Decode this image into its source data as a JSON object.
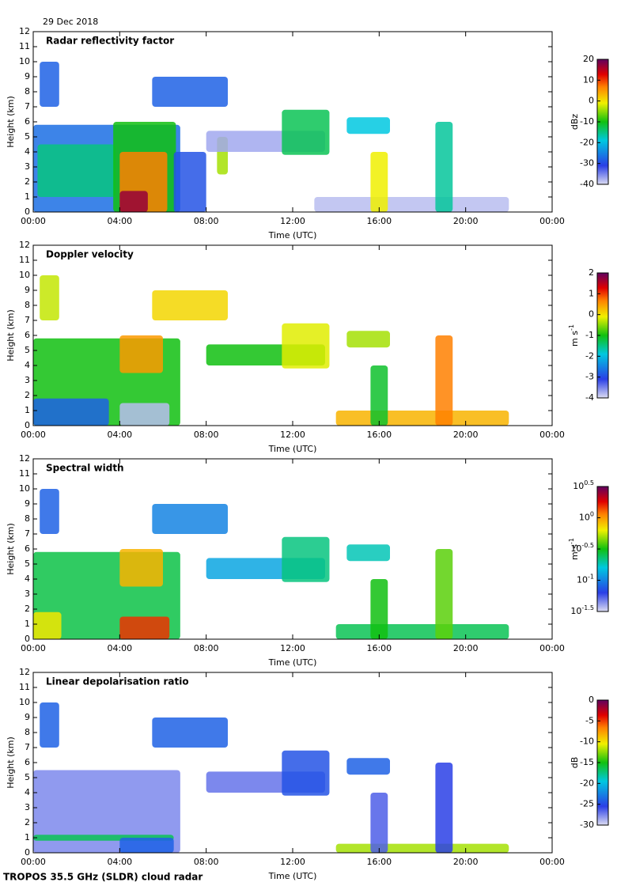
{
  "date": "29 Dec 2018",
  "footer": "TROPOS 35.5 GHz (SLDR) cloud radar",
  "chart_data": [
    {
      "type": "heatmap",
      "title": "Radar reflectivity factor",
      "xlabel": "Time (UTC)",
      "ylabel": "Height (km)",
      "xlim": [
        0,
        24
      ],
      "xticks": [
        {
          "value": 0,
          "label": "00:00"
        },
        {
          "value": 4,
          "label": "04:00"
        },
        {
          "value": 8,
          "label": "08:00"
        },
        {
          "value": 12,
          "label": "12:00"
        },
        {
          "value": 16,
          "label": "16:00"
        },
        {
          "value": 20,
          "label": "20:00"
        },
        {
          "value": 24,
          "label": "00:00"
        }
      ],
      "ylim": [
        0,
        12
      ],
      "yticks": [
        0,
        1,
        2,
        3,
        4,
        5,
        6,
        7,
        8,
        9,
        10,
        11,
        12
      ],
      "colorbar": {
        "label": "dBz",
        "lim": [
          -40,
          20
        ],
        "ticks": [
          -40,
          -30,
          -20,
          -10,
          0,
          10,
          20
        ]
      }
    },
    {
      "type": "heatmap",
      "title": "Doppler velocity",
      "xlabel": "Time (UTC)",
      "ylabel": "Height (km)",
      "xlim": [
        0,
        24
      ],
      "xticks": [
        {
          "value": 0,
          "label": "00:00"
        },
        {
          "value": 4,
          "label": "04:00"
        },
        {
          "value": 8,
          "label": "08:00"
        },
        {
          "value": 12,
          "label": "12:00"
        },
        {
          "value": 16,
          "label": "16:00"
        },
        {
          "value": 20,
          "label": "20:00"
        },
        {
          "value": 24,
          "label": "00:00"
        }
      ],
      "ylim": [
        0,
        12
      ],
      "yticks": [
        0,
        1,
        2,
        3,
        4,
        5,
        6,
        7,
        8,
        9,
        10,
        11,
        12
      ],
      "colorbar": {
        "label": "m s",
        "label_exponent": "-1",
        "lim": [
          -4,
          2
        ],
        "ticks": [
          -4,
          -3,
          -2,
          -1,
          0,
          1,
          2
        ]
      }
    },
    {
      "type": "heatmap",
      "title": "Spectral width",
      "xlabel": "Time (UTC)",
      "ylabel": "Height (km)",
      "xlim": [
        0,
        24
      ],
      "xticks": [
        {
          "value": 0,
          "label": "00:00"
        },
        {
          "value": 4,
          "label": "04:00"
        },
        {
          "value": 8,
          "label": "08:00"
        },
        {
          "value": 12,
          "label": "12:00"
        },
        {
          "value": 16,
          "label": "16:00"
        },
        {
          "value": 20,
          "label": "20:00"
        },
        {
          "value": 24,
          "label": "00:00"
        }
      ],
      "ylim": [
        0,
        12
      ],
      "yticks": [
        0,
        1,
        2,
        3,
        4,
        5,
        6,
        7,
        8,
        9,
        10,
        11,
        12
      ],
      "colorbar": {
        "label": "m s",
        "label_exponent": "-1",
        "lim": [
          -1.5,
          0.5
        ],
        "log": true,
        "ticks": [
          {
            "value": -1.5,
            "label": "10",
            "exponent": "-1.5"
          },
          {
            "value": -1,
            "label": "10",
            "exponent": "-1"
          },
          {
            "value": -0.5,
            "label": "10",
            "exponent": "-0.5"
          },
          {
            "value": 0,
            "label": "10",
            "exponent": "0"
          },
          {
            "value": 0.5,
            "label": "10",
            "exponent": "0.5"
          }
        ]
      }
    },
    {
      "type": "heatmap",
      "title": "Linear depolarisation ratio",
      "xlabel": "Time (UTC)",
      "ylabel": "Height (km)",
      "xlim": [
        0,
        24
      ],
      "xticks": [
        {
          "value": 0,
          "label": "00:00"
        },
        {
          "value": 4,
          "label": "04:00"
        },
        {
          "value": 8,
          "label": "08:00"
        },
        {
          "value": 12,
          "label": "12:00"
        },
        {
          "value": 16,
          "label": "16:00"
        },
        {
          "value": 20,
          "label": "20:00"
        },
        {
          "value": 24,
          "label": "00:00"
        }
      ],
      "ylim": [
        0,
        12
      ],
      "yticks": [
        0,
        1,
        2,
        3,
        4,
        5,
        6,
        7,
        8,
        9,
        10,
        11,
        12
      ],
      "colorbar": {
        "label": "dB",
        "lim": [
          -30,
          0
        ],
        "ticks": [
          -30,
          -25,
          -20,
          -15,
          -10,
          -5,
          0
        ]
      }
    }
  ]
}
